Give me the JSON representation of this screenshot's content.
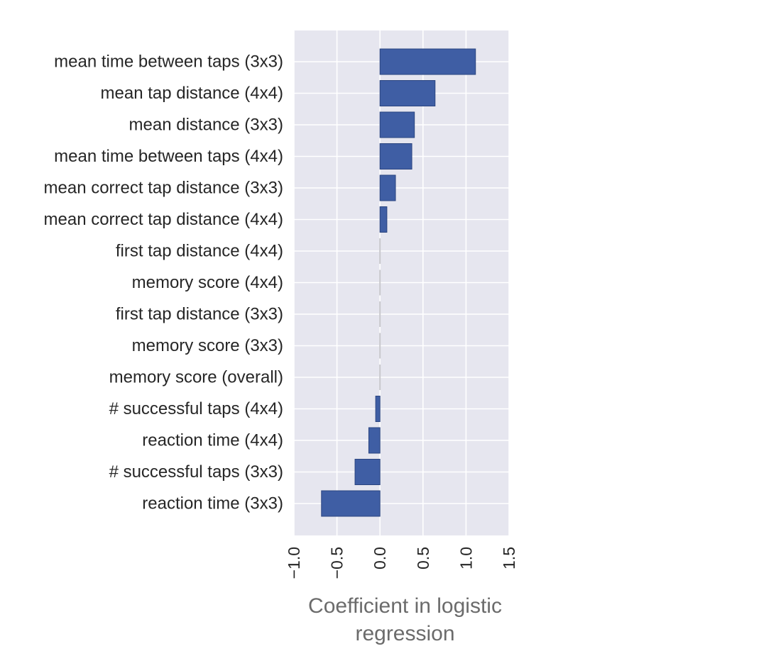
{
  "chart_data": {
    "type": "bar",
    "orientation": "horizontal",
    "categories": [
      "mean time between taps (3x3)",
      "mean tap distance (4x4)",
      "mean distance (3x3)",
      "mean time between taps (4x4)",
      "mean correct tap distance (3x3)",
      "mean correct tap distance (4x4)",
      "first tap distance (4x4)",
      "memory score (4x4)",
      "first tap distance (3x3)",
      "memory score (3x3)",
      "memory score (overall)",
      "# successful taps (4x4)",
      "reaction time (4x4)",
      "# successful taps (3x3)",
      "reaction time (3x3)"
    ],
    "values": [
      1.11,
      0.64,
      0.4,
      0.37,
      0.18,
      0.08,
      0.0,
      0.0,
      0.0,
      0.0,
      0.0,
      -0.05,
      -0.13,
      -0.29,
      -0.68
    ],
    "title": "",
    "xlabel_lines": [
      "Coefficient in logistic",
      "regression"
    ],
    "ylabel": "",
    "xlim": [
      -1.0,
      1.5
    ],
    "xticks": [
      -1.0,
      -0.5,
      0.0,
      0.5,
      1.0,
      1.5
    ],
    "xtick_labels": [
      "−1.0",
      "−0.5",
      "0.0",
      "0.5",
      "1.0",
      "1.5"
    ],
    "grid": true,
    "bar_color": "#3f5ea4",
    "bar_edge_color": "#2b4580",
    "zero_bar_color": "#c8c8cc",
    "background_color": "#e6e6ef",
    "grid_color": "#ffffff"
  }
}
